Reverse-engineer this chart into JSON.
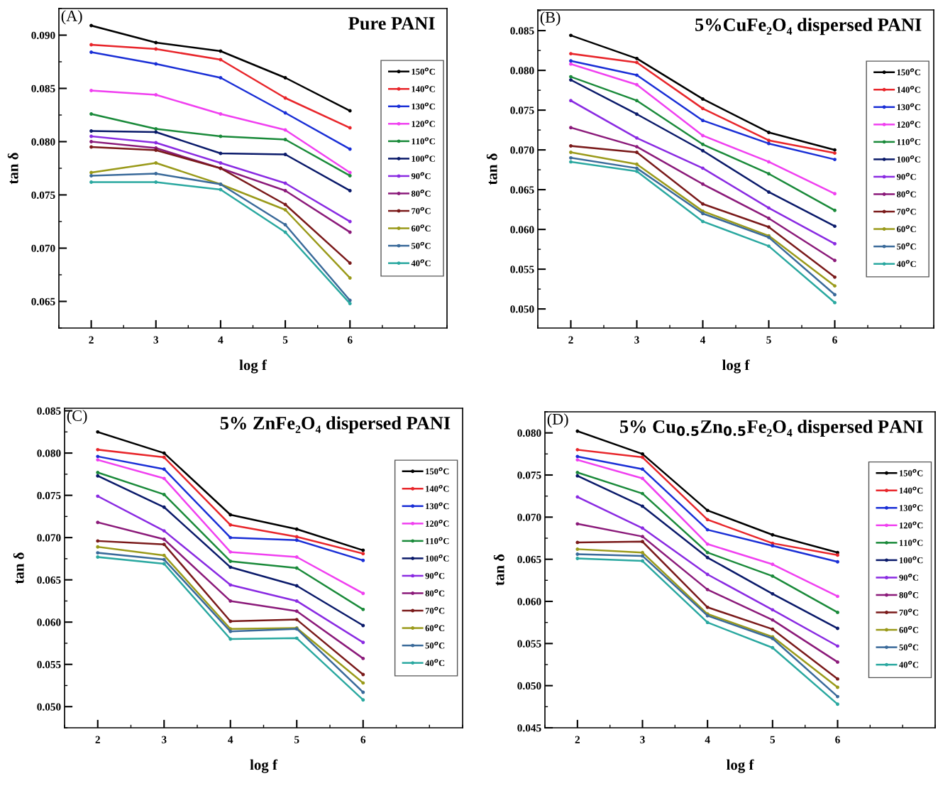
{
  "chart_data": [
    {
      "type": "line",
      "title": "Pure PANI",
      "annotations": [
        "(A)"
      ],
      "xlabel": "log f",
      "ylabel": "tan δ",
      "x": [
        2,
        3,
        4,
        5,
        6
      ],
      "xlim": [
        1.5,
        7.5
      ],
      "xticks": [
        2,
        3,
        4,
        5,
        6
      ],
      "ylim": [
        0.0625,
        0.0925
      ],
      "yticks": [
        0.065,
        {
          "value": 0.07,
          "label": "0.070"
        },
        0.075,
        {
          "value": 0.08,
          "label": "0.080"
        },
        0.085,
        {
          "value": 0.09,
          "label": "0.090"
        }
      ],
      "legend": "right",
      "marker": "circle",
      "line_style": "solid",
      "grid": false,
      "series": [
        {
          "name": "150$^{o}$C",
          "color": "#000000",
          "values": [
            0.0909,
            0.0893,
            0.0885,
            0.086,
            0.0829
          ]
        },
        {
          "name": "140$^{o}$C",
          "color": "#e8262b",
          "values": [
            0.0891,
            0.0887,
            0.0877,
            0.0841,
            0.0813
          ]
        },
        {
          "name": "130$^{o}$C",
          "color": "#1a2fd6",
          "values": [
            0.0884,
            0.0873,
            0.086,
            0.0827,
            0.0793
          ]
        },
        {
          "name": "120$^{o}$C",
          "color": "#f040f0",
          "values": [
            0.0848,
            0.0844,
            0.0826,
            0.0811,
            0.0771
          ]
        },
        {
          "name": "110$^{o}$C",
          "color": "#1a8a3a",
          "values": [
            0.0826,
            0.0812,
            0.0805,
            0.0802,
            0.0768
          ]
        },
        {
          "name": "100$^{o}$C",
          "color": "#0a1a6a",
          "values": [
            0.081,
            0.0809,
            0.0789,
            0.0788,
            0.0754
          ]
        },
        {
          "name": "90$^{o}$C",
          "color": "#8a2be2",
          "values": [
            0.0805,
            0.0799,
            0.078,
            0.0761,
            0.0725
          ]
        },
        {
          "name": "80$^{o}$C",
          "color": "#8b1a7a",
          "values": [
            0.08,
            0.0794,
            0.0775,
            0.0754,
            0.0715
          ]
        },
        {
          "name": "70$^{o}$C",
          "color": "#7a1a1a",
          "values": [
            0.0795,
            0.0792,
            0.0775,
            0.0741,
            0.0686
          ]
        },
        {
          "name": "60$^{o}$C",
          "color": "#9a9a1a",
          "values": [
            0.0771,
            0.078,
            0.076,
            0.0736,
            0.0672
          ]
        },
        {
          "name": "50$^{o}$C",
          "color": "#3a6a9a",
          "values": [
            0.0768,
            0.077,
            0.076,
            0.0722,
            0.0651
          ]
        },
        {
          "name": "40$^{o}$C",
          "color": "#2aa8a0",
          "values": [
            0.0762,
            0.0762,
            0.0755,
            0.0715,
            0.0648
          ]
        }
      ]
    },
    {
      "type": "line",
      "title": "5%CuFe₂O₄ dispersed PANI",
      "annotations": [
        "(B)"
      ],
      "xlabel": "log f",
      "ylabel": "tan δ",
      "x": [
        2,
        3,
        4,
        5,
        6
      ],
      "xlim": [
        1.5,
        7.5
      ],
      "xticks": [
        2,
        3,
        4,
        5,
        6
      ],
      "ylim": [
        0.0476,
        0.0876
      ],
      "yticks": [
        {
          "value": 0.05,
          "label": "0.050"
        },
        0.055,
        {
          "value": 0.06,
          "label": "0.060"
        },
        0.065,
        {
          "value": 0.07,
          "label": "0.070"
        },
        0.075,
        {
          "value": 0.08,
          "label": "0.080"
        },
        0.085
      ],
      "legend": "right",
      "marker": "circle",
      "line_style": "solid",
      "grid": false,
      "series": [
        {
          "name": "150$^{o}$C",
          "color": "#000000",
          "values": [
            0.0844,
            0.0815,
            0.0764,
            0.0722,
            0.07
          ]
        },
        {
          "name": "140$^{o}$C",
          "color": "#e8262b",
          "values": [
            0.0821,
            0.081,
            0.0752,
            0.0712,
            0.0696
          ]
        },
        {
          "name": "130$^{o}$C",
          "color": "#1a2fd6",
          "values": [
            0.0812,
            0.0794,
            0.0737,
            0.0708,
            0.0688
          ]
        },
        {
          "name": "120$^{o}$C",
          "color": "#f040f0",
          "values": [
            0.0808,
            0.0782,
            0.0718,
            0.0685,
            0.0645
          ]
        },
        {
          "name": "110$^{o}$C",
          "color": "#1a8a3a",
          "values": [
            0.0792,
            0.0762,
            0.0707,
            0.067,
            0.0624
          ]
        },
        {
          "name": "100$^{o}$C",
          "color": "#0a1a6a",
          "values": [
            0.0788,
            0.0745,
            0.0699,
            0.0647,
            0.0604
          ]
        },
        {
          "name": "90$^{o}$C",
          "color": "#8a2be2",
          "values": [
            0.0762,
            0.0715,
            0.0677,
            0.0627,
            0.0582
          ]
        },
        {
          "name": "80$^{o}$C",
          "color": "#8b1a7a",
          "values": [
            0.0728,
            0.0704,
            0.0657,
            0.0614,
            0.0561
          ]
        },
        {
          "name": "70$^{o}$C",
          "color": "#7a1a1a",
          "values": [
            0.0705,
            0.0697,
            0.0632,
            0.0603,
            0.054
          ]
        },
        {
          "name": "60$^{o}$C",
          "color": "#9a9a1a",
          "values": [
            0.0697,
            0.0682,
            0.0623,
            0.0592,
            0.0529
          ]
        },
        {
          "name": "50$^{o}$C",
          "color": "#3a6a9a",
          "values": [
            0.069,
            0.0677,
            0.062,
            0.059,
            0.0518
          ]
        },
        {
          "name": "40$^{o}$C",
          "color": "#2aa8a0",
          "values": [
            0.0685,
            0.0673,
            0.061,
            0.0579,
            0.0508
          ]
        }
      ]
    },
    {
      "type": "line",
      "title": "5% ZnFe₂O₄ dispersed PANI",
      "annotations": [
        "(C)"
      ],
      "xlabel": "log f",
      "ylabel": "tan δ",
      "x": [
        2,
        3,
        4,
        5,
        6
      ],
      "xlim": [
        1.5,
        7.5
      ],
      "xticks": [
        2,
        3,
        4,
        5,
        6
      ],
      "ylim": [
        0.0475,
        0.0853
      ],
      "yticks": [
        {
          "value": 0.05,
          "label": "0.050"
        },
        0.055,
        {
          "value": 0.06,
          "label": "0.060"
        },
        0.065,
        {
          "value": 0.07,
          "label": "0.070"
        },
        0.075,
        {
          "value": 0.08,
          "label": "0.080"
        },
        0.085
      ],
      "legend": "right",
      "marker": "circle",
      "line_style": "solid",
      "grid": false,
      "series": [
        {
          "name": "150$^{o}$C",
          "color": "#000000",
          "values": [
            0.0825,
            0.08,
            0.0727,
            0.071,
            0.0685
          ]
        },
        {
          "name": "140$^{o}$C",
          "color": "#e8262b",
          "values": [
            0.0804,
            0.0795,
            0.0715,
            0.0701,
            0.0681
          ]
        },
        {
          "name": "130$^{o}$C",
          "color": "#1a2fd6",
          "values": [
            0.0796,
            0.0781,
            0.07,
            0.0697,
            0.0673
          ]
        },
        {
          "name": "120$^{o}$C",
          "color": "#f040f0",
          "values": [
            0.0792,
            0.077,
            0.0683,
            0.0677,
            0.0634
          ]
        },
        {
          "name": "110$^{o}$C",
          "color": "#1a8a3a",
          "values": [
            0.0777,
            0.0751,
            0.0672,
            0.0664,
            0.0615
          ]
        },
        {
          "name": "100$^{o}$C",
          "color": "#0a1a6a",
          "values": [
            0.0773,
            0.0736,
            0.0665,
            0.0643,
            0.0596
          ]
        },
        {
          "name": "90$^{o}$C",
          "color": "#8a2be2",
          "values": [
            0.0749,
            0.0708,
            0.0644,
            0.0625,
            0.0576
          ]
        },
        {
          "name": "80$^{o}$C",
          "color": "#8b1a7a",
          "values": [
            0.0718,
            0.0698,
            0.0625,
            0.0613,
            0.0557
          ]
        },
        {
          "name": "70$^{o}$C",
          "color": "#7a1a1a",
          "values": [
            0.0696,
            0.0692,
            0.0601,
            0.0603,
            0.0538
          ]
        },
        {
          "name": "60$^{o}$C",
          "color": "#9a9a1a",
          "values": [
            0.0689,
            0.0679,
            0.0592,
            0.0593,
            0.0528
          ]
        },
        {
          "name": "50$^{o}$C",
          "color": "#3a6a9a",
          "values": [
            0.0682,
            0.0674,
            0.0589,
            0.0592,
            0.0517
          ]
        },
        {
          "name": "40$^{o}$C",
          "color": "#2aa8a0",
          "values": [
            0.0677,
            0.0669,
            0.058,
            0.0581,
            0.0508
          ]
        }
      ]
    },
    {
      "type": "line",
      "title": "5% Cu$_{0.5}$Zn$_{0.5}$Fe₂O₄ dispersed PANI",
      "annotations": [
        "(D)"
      ],
      "xlabel": "log f",
      "ylabel": "tan δ",
      "x": [
        2,
        3,
        4,
        5,
        6
      ],
      "xlim": [
        1.5,
        7.5
      ],
      "xticks": [
        2,
        3,
        4,
        5,
        6
      ],
      "ylim": [
        0.045,
        0.0825
      ],
      "yticks": [
        0.045,
        {
          "value": 0.05,
          "label": "0.050"
        },
        0.055,
        {
          "value": 0.06,
          "label": "0.060"
        },
        0.065,
        {
          "value": 0.07,
          "label": "0.070"
        },
        0.075,
        {
          "value": 0.08,
          "label": "0.080"
        }
      ],
      "legend": "right",
      "marker": "circle",
      "line_style": "solid",
      "grid": false,
      "series": [
        {
          "name": "150$^{o}$C",
          "color": "#000000",
          "values": [
            0.0802,
            0.0775,
            0.0708,
            0.0679,
            0.0658
          ]
        },
        {
          "name": "140$^{o}$C",
          "color": "#e8262b",
          "values": [
            0.078,
            0.0771,
            0.0697,
            0.0669,
            0.0655
          ]
        },
        {
          "name": "130$^{o}$C",
          "color": "#1a2fd6",
          "values": [
            0.0772,
            0.0757,
            0.0685,
            0.0666,
            0.0647
          ]
        },
        {
          "name": "120$^{o}$C",
          "color": "#f040f0",
          "values": [
            0.0768,
            0.0746,
            0.0668,
            0.0644,
            0.0606
          ]
        },
        {
          "name": "110$^{o}$C",
          "color": "#1a8a3a",
          "values": [
            0.0753,
            0.0728,
            0.0658,
            0.063,
            0.0587
          ]
        },
        {
          "name": "100$^{o}$C",
          "color": "#0a1a6a",
          "values": [
            0.0749,
            0.0713,
            0.0652,
            0.0609,
            0.0568
          ]
        },
        {
          "name": "90$^{o}$C",
          "color": "#8a2be2",
          "values": [
            0.0724,
            0.0687,
            0.0632,
            0.059,
            0.0547
          ]
        },
        {
          "name": "80$^{o}$C",
          "color": "#8b1a7a",
          "values": [
            0.0692,
            0.0677,
            0.0614,
            0.0578,
            0.0528
          ]
        },
        {
          "name": "70$^{o}$C",
          "color": "#7a1a1a",
          "values": [
            0.067,
            0.0671,
            0.0593,
            0.0567,
            0.0508
          ]
        },
        {
          "name": "60$^{o}$C",
          "color": "#9a9a1a",
          "values": [
            0.0662,
            0.0658,
            0.0585,
            0.0558,
            0.0498
          ]
        },
        {
          "name": "50$^{o}$C",
          "color": "#3a6a9a",
          "values": [
            0.0656,
            0.0654,
            0.0583,
            0.0556,
            0.0487
          ]
        },
        {
          "name": "40$^{o}$C",
          "color": "#2aa8a0",
          "values": [
            0.0651,
            0.0648,
            0.0575,
            0.0545,
            0.0478
          ]
        }
      ]
    }
  ]
}
